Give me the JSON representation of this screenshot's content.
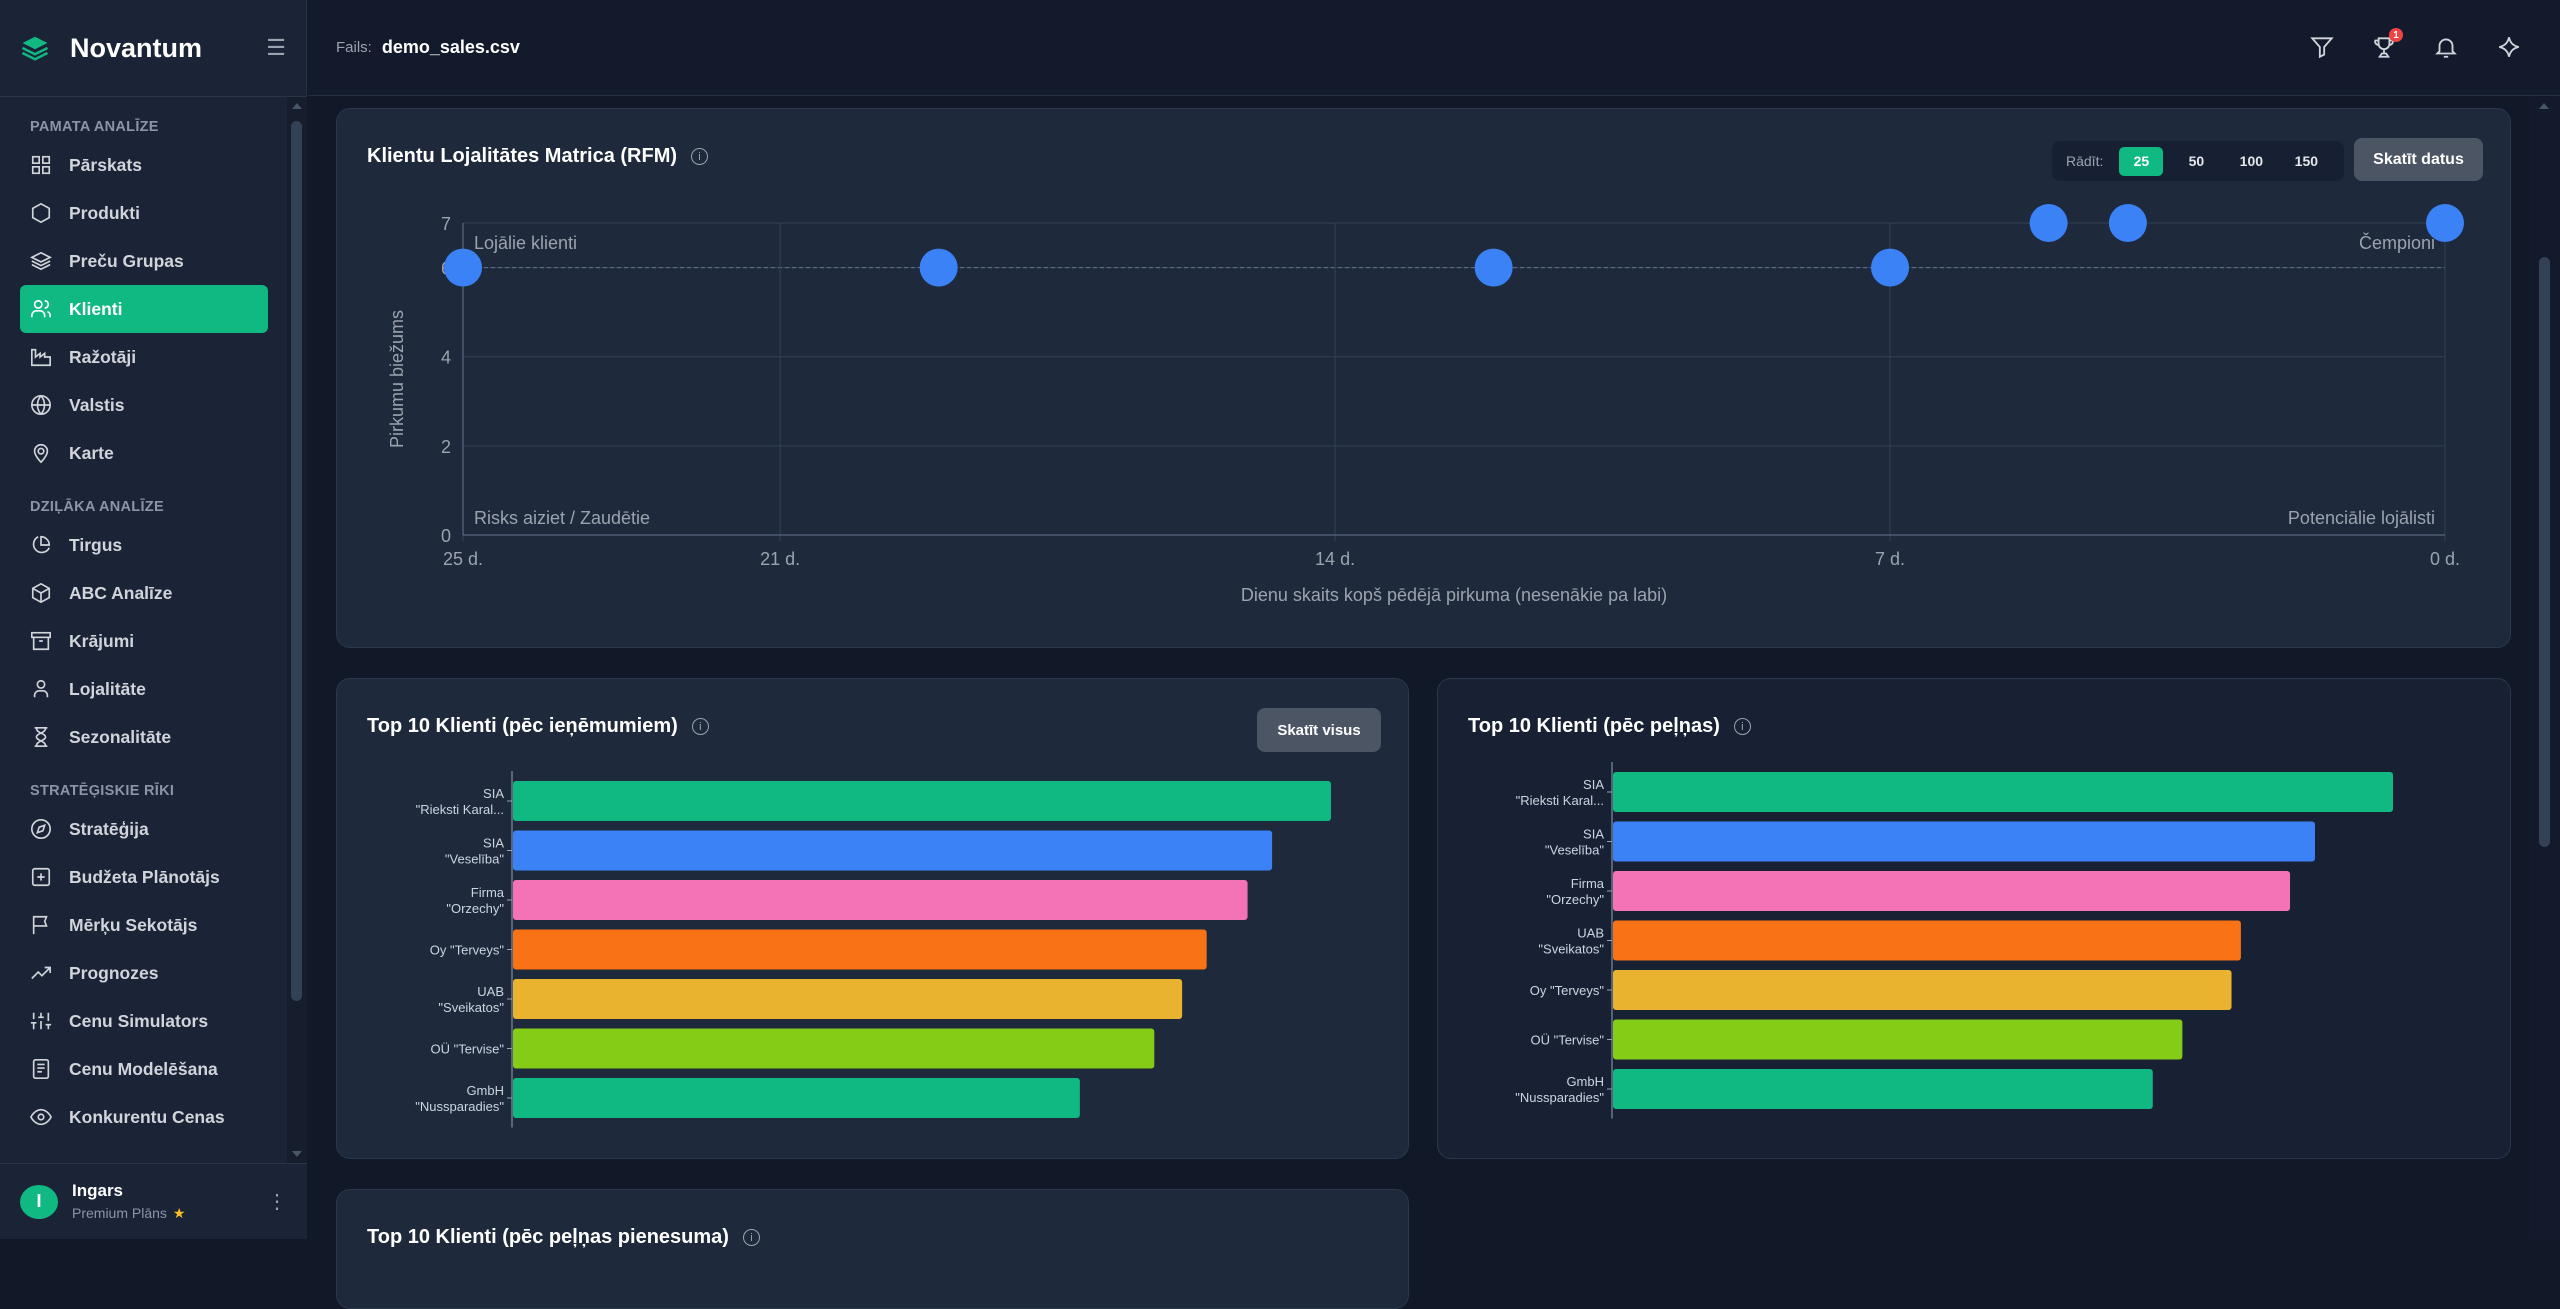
{
  "sidebar": {
    "brand": "Novantum",
    "sections": [
      {
        "title": "PAMATA ANALĪZE",
        "items": [
          {
            "label": "Pārskats",
            "icon": "grid-icon"
          },
          {
            "label": "Produkti",
            "icon": "hexagon-icon"
          },
          {
            "label": "Preču Grupas",
            "icon": "layers-icon"
          },
          {
            "label": "Klienti",
            "icon": "users-icon",
            "active": true
          },
          {
            "label": "Ražotāji",
            "icon": "factory-icon"
          },
          {
            "label": "Valstis",
            "icon": "globe-icon"
          },
          {
            "label": "Karte",
            "icon": "map-pin-icon"
          }
        ]
      },
      {
        "title": "DZIĻĀKA ANALĪZE",
        "items": [
          {
            "label": "Tirgus",
            "icon": "pie-chart-icon"
          },
          {
            "label": "ABC Analīze",
            "icon": "box-icon"
          },
          {
            "label": "Krājumi",
            "icon": "archive-icon"
          },
          {
            "label": "Lojalitāte",
            "icon": "user-icon"
          },
          {
            "label": "Sezonalitāte",
            "icon": "hourglass-icon"
          }
        ]
      },
      {
        "title": "STRATĒĢISKIE RĪKI",
        "items": [
          {
            "label": "Stratēģija",
            "icon": "compass-icon"
          },
          {
            "label": "Budžeta Plānotājs",
            "icon": "plus-square-icon"
          },
          {
            "label": "Mērķu Sekotājs",
            "icon": "flag-icon"
          },
          {
            "label": "Prognozes",
            "icon": "trending-up-icon"
          },
          {
            "label": "Cenu Simulators",
            "icon": "sliders-icon"
          },
          {
            "label": "Cenu Modelēšana",
            "icon": "document-icon"
          },
          {
            "label": "Konkurentu Cenas",
            "icon": "eye-icon"
          }
        ]
      }
    ],
    "user": {
      "initial": "I",
      "name": "Ingars",
      "plan": "Premium Plāns"
    }
  },
  "header": {
    "file_label": "Fails:",
    "file_name": "demo_sales.csv",
    "trophy_badge": "1"
  },
  "rfm": {
    "title": "Klientu Lojalitātes Matrica (RFM)",
    "show_label": "Rādīt:",
    "show_options": [
      "25",
      "50",
      "100",
      "150"
    ],
    "show_selected": "25",
    "view_button": "Skatīt datus"
  },
  "revenue": {
    "title": "Top 10 Klienti (pēc ieņēmumiem)",
    "view_all": "Skatīt visus"
  },
  "profit": {
    "title": "Top 10 Klienti (pēc peļņas)"
  },
  "margin": {
    "title": "Top 10 Klienti (pēc peļņas pienesuma)"
  },
  "chart_data": [
    {
      "type": "scatter",
      "xlabel": "Dienu skaits kopš pēdējā pirkuma (nesenākie pa labi)",
      "ylabel": "Pirkumu biežums",
      "xlim": [
        25,
        0
      ],
      "ylim": [
        0,
        7
      ],
      "x_ticks": [
        "25 d.",
        "21 d.",
        "14 d.",
        "7 d.",
        "0 d."
      ],
      "x_tick_values": [
        25,
        21,
        14,
        7,
        0
      ],
      "y_ticks": [
        0,
        2,
        4,
        6,
        7
      ],
      "quadrant_labels": {
        "top_left": "Lojālie klienti",
        "top_right": "Čempioni",
        "bottom_left": "Risks aiziet / Zaudētie",
        "bottom_right": "Potenciālie lojālisti"
      },
      "reference_y": 6,
      "grid": true,
      "color": "#3b82f6",
      "points": [
        {
          "x": 25,
          "y": 6
        },
        {
          "x": 19,
          "y": 6
        },
        {
          "x": 12,
          "y": 6
        },
        {
          "x": 7,
          "y": 6
        },
        {
          "x": 5,
          "y": 7
        },
        {
          "x": 4,
          "y": 7
        },
        {
          "x": 0,
          "y": 7
        }
      ]
    },
    {
      "type": "bar",
      "orientation": "horizontal",
      "categories": [
        "SIA \"Rieksti Karal...",
        "SIA \"Veselība\"",
        "Firma \"Orzechy\"",
        "Oy \"Terveys\"",
        "UAB \"Sveikatos\"",
        "OÜ \"Tervise\"",
        "GmbH \"Nussparadies\""
      ],
      "values": [
        100,
        92.8,
        89.8,
        84.8,
        81.8,
        78.4,
        69.3
      ],
      "colors": [
        "#10b981",
        "#3b82f6",
        "#f472b6",
        "#f97316",
        "#eab32f",
        "#84cc16",
        "#10b981"
      ]
    },
    {
      "type": "bar",
      "orientation": "horizontal",
      "categories": [
        "SIA \"Rieksti Karal...",
        "SIA \"Veselība\"",
        "Firma \"Orzechy\"",
        "UAB \"Sveikatos\"",
        "Oy \"Terveys\"",
        "OÜ \"Tervise\"",
        "GmbH \"Nussparadies\""
      ],
      "values": [
        100,
        90,
        86.8,
        80.5,
        79.3,
        73,
        69.2
      ],
      "colors": [
        "#10b981",
        "#3b82f6",
        "#f472b6",
        "#f97316",
        "#eab32f",
        "#84cc16",
        "#10b981"
      ]
    }
  ]
}
